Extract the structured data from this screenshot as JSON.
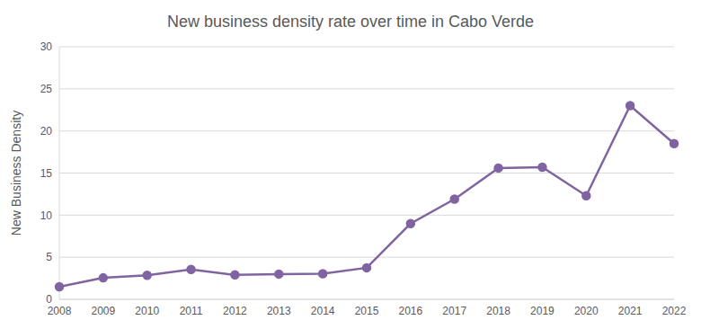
{
  "chart_data": {
    "type": "line",
    "title": "New business density rate over time in Cabo Verde",
    "y_label": "New Business Density",
    "categories": [
      "2008",
      "2009",
      "2010",
      "2011",
      "2012",
      "2013",
      "2014",
      "2015",
      "2016",
      "2017",
      "2018",
      "2019",
      "2020",
      "2021",
      "2022"
    ],
    "values": [
      1.5,
      2.55,
      2.85,
      3.55,
      2.9,
      3.0,
      3.05,
      3.75,
      9.0,
      11.9,
      15.6,
      15.7,
      12.3,
      23.0,
      18.5
    ],
    "color": "#8064a2",
    "marker": "circle",
    "ylim": [
      0,
      30
    ],
    "yticks": [
      0,
      5,
      10,
      15,
      20,
      25,
      30
    ],
    "grid": true
  }
}
